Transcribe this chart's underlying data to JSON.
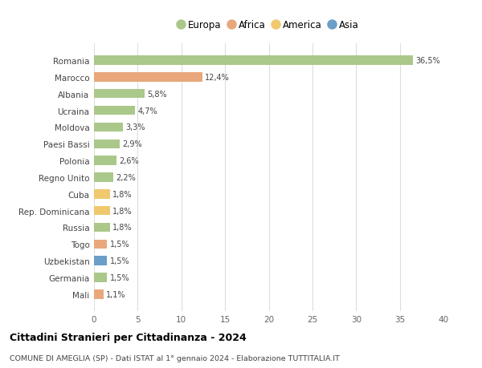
{
  "countries": [
    "Romania",
    "Marocco",
    "Albania",
    "Ucraina",
    "Moldova",
    "Paesi Bassi",
    "Polonia",
    "Regno Unito",
    "Cuba",
    "Rep. Dominicana",
    "Russia",
    "Togo",
    "Uzbekistan",
    "Germania",
    "Mali"
  ],
  "values": [
    36.5,
    12.4,
    5.8,
    4.7,
    3.3,
    2.9,
    2.6,
    2.2,
    1.8,
    1.8,
    1.8,
    1.5,
    1.5,
    1.5,
    1.1
  ],
  "labels": [
    "36,5%",
    "12,4%",
    "5,8%",
    "4,7%",
    "3,3%",
    "2,9%",
    "2,6%",
    "2,2%",
    "1,8%",
    "1,8%",
    "1,8%",
    "1,5%",
    "1,5%",
    "1,5%",
    "1,1%"
  ],
  "continents": [
    "Europa",
    "Africa",
    "Europa",
    "Europa",
    "Europa",
    "Europa",
    "Europa",
    "Europa",
    "America",
    "America",
    "Europa",
    "Africa",
    "Asia",
    "Europa",
    "Africa"
  ],
  "colors": {
    "Europa": "#aac88a",
    "Africa": "#e8a87c",
    "America": "#f0c96e",
    "Asia": "#6b9ec8"
  },
  "legend_order": [
    "Europa",
    "Africa",
    "America",
    "Asia"
  ],
  "title": "Cittadini Stranieri per Cittadinanza - 2024",
  "subtitle": "COMUNE DI AMEGLIA (SP) - Dati ISTAT al 1° gennaio 2024 - Elaborazione TUTTITALIA.IT",
  "xlim": [
    0,
    40
  ],
  "xticks": [
    0,
    5,
    10,
    15,
    20,
    25,
    30,
    35,
    40
  ],
  "background_color": "#ffffff",
  "grid_color": "#dddddd"
}
